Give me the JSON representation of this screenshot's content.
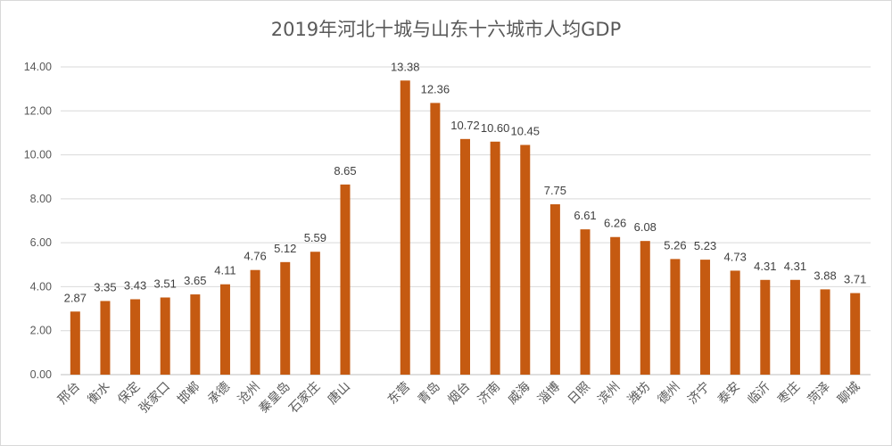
{
  "chart_data": {
    "type": "bar",
    "title": "2019年河北十城与山东十六城市人均GDP",
    "xlabel": "",
    "ylabel": "",
    "ylim": [
      0,
      14
    ],
    "yticks": [
      "0.00",
      "2.00",
      "4.00",
      "6.00",
      "8.00",
      "10.00",
      "12.00",
      "14.00"
    ],
    "grid": true,
    "legend": "none",
    "bar_color": "#C55A11",
    "categories": [
      "邢台",
      "衡水",
      "保定",
      "张家口",
      "邯郸",
      "承德",
      "沧州",
      "秦皇岛",
      "石家庄",
      "唐山",
      "",
      "东营",
      "青岛",
      "烟台",
      "济南",
      "威海",
      "淄博",
      "日照",
      "滨州",
      "潍坊",
      "德州",
      "济宁",
      "泰安",
      "临沂",
      "枣庄",
      "菏泽",
      "聊城"
    ],
    "values": [
      2.87,
      3.35,
      3.43,
      3.51,
      3.65,
      4.11,
      4.76,
      5.12,
      5.59,
      8.65,
      null,
      13.38,
      12.36,
      10.72,
      10.6,
      10.45,
      7.75,
      6.61,
      6.26,
      6.08,
      5.26,
      5.23,
      4.73,
      4.31,
      4.31,
      3.88,
      3.71
    ]
  }
}
